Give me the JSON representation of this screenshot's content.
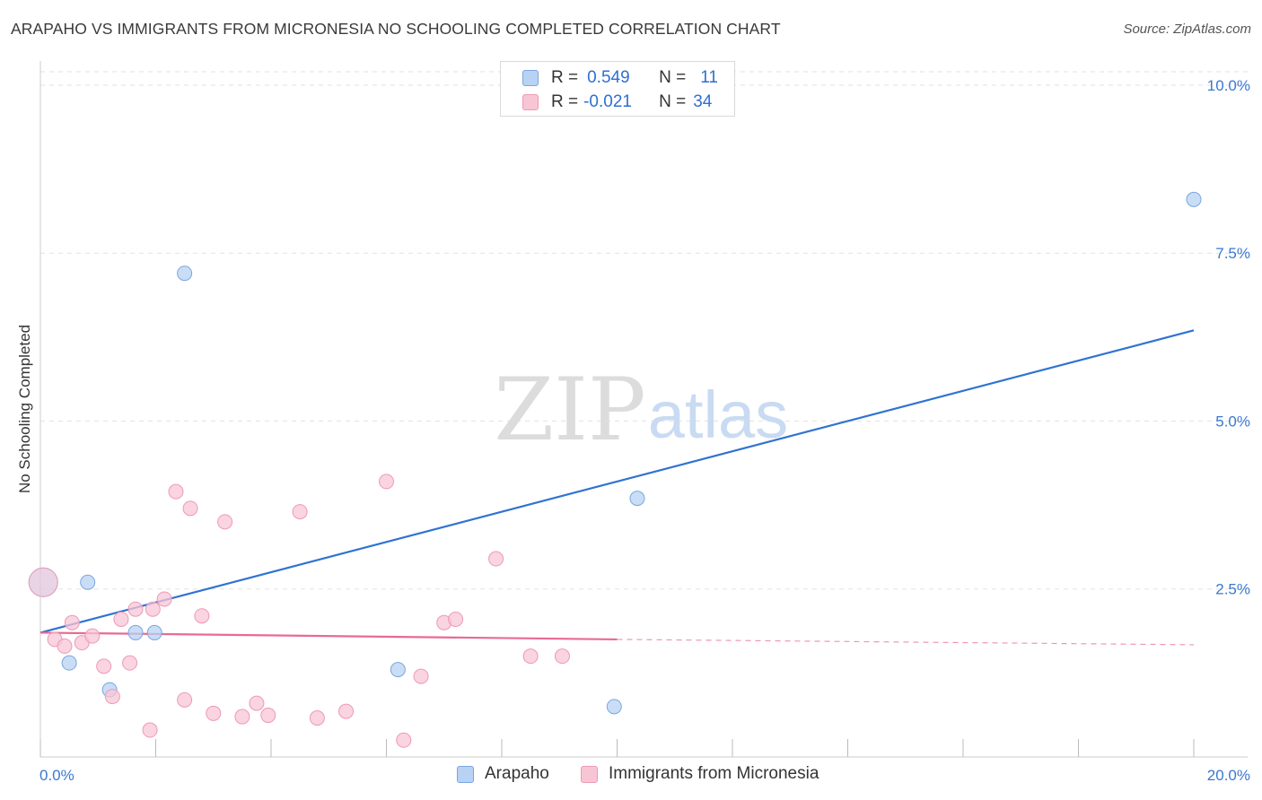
{
  "title": "ARAPAHO VS IMMIGRANTS FROM MICRONESIA NO SCHOOLING COMPLETED CORRELATION CHART",
  "source": "Source: ZipAtlas.com",
  "watermark": {
    "zip": "ZIP",
    "atlas": "atlas"
  },
  "legend_top": {
    "rows": [
      {
        "r_label": "R =",
        "r_value": "0.549",
        "n_label": "N =",
        "n_value": "11"
      },
      {
        "r_label": "R =",
        "r_value": "-0.021",
        "n_label": "N =",
        "n_value": "34"
      }
    ]
  },
  "legend_bottom": {
    "series1": "Arapaho",
    "series2": "Immigrants from Micronesia"
  },
  "colors": {
    "blue_fill": "#b8d2f3",
    "blue_stroke": "#7aa6e0",
    "blue_line": "#2f73d2",
    "pink_fill": "#f8c5d5",
    "pink_stroke": "#ec9ab5",
    "pink_line": "#e86a95",
    "tick_color": "#3a78d0",
    "grid": "#e2e2e2"
  },
  "chart_data": {
    "type": "scatter",
    "title": "ARAPAHO VS IMMIGRANTS FROM MICRONESIA NO SCHOOLING COMPLETED CORRELATION CHART",
    "xlabel": "",
    "ylabel": "No Schooling Completed",
    "xlim": [
      0,
      20
    ],
    "ylim": [
      0,
      10.2
    ],
    "x_tick_labels": [
      "0.0%",
      "20.0%"
    ],
    "y_ticks": [
      2.5,
      5.0,
      7.5,
      10.0
    ],
    "y_tick_labels": [
      "2.5%",
      "5.0%",
      "7.5%",
      "10.0%"
    ],
    "grid": true,
    "series": [
      {
        "name": "Arapaho",
        "color": "blue",
        "r": 0.549,
        "n": 11,
        "points": [
          {
            "x": 0.05,
            "y": 2.6,
            "big": true
          },
          {
            "x": 0.5,
            "y": 1.4
          },
          {
            "x": 0.82,
            "y": 2.6
          },
          {
            "x": 1.2,
            "y": 1.0
          },
          {
            "x": 1.65,
            "y": 1.85
          },
          {
            "x": 1.98,
            "y": 1.85
          },
          {
            "x": 2.5,
            "y": 7.2
          },
          {
            "x": 6.2,
            "y": 1.3
          },
          {
            "x": 9.95,
            "y": 0.75
          },
          {
            "x": 10.35,
            "y": 3.85
          },
          {
            "x": 20.0,
            "y": 8.3
          }
        ],
        "trend": {
          "x0": 0.0,
          "y0": 1.85,
          "x1": 20.0,
          "y1": 6.35
        }
      },
      {
        "name": "Immigrants from Micronesia",
        "color": "pink",
        "r": -0.021,
        "n": 34,
        "points": [
          {
            "x": 0.05,
            "y": 2.6,
            "big": true
          },
          {
            "x": 0.25,
            "y": 1.75
          },
          {
            "x": 0.42,
            "y": 1.65
          },
          {
            "x": 0.55,
            "y": 2.0
          },
          {
            "x": 0.72,
            "y": 1.7
          },
          {
            "x": 0.9,
            "y": 1.8
          },
          {
            "x": 1.1,
            "y": 1.35
          },
          {
            "x": 1.25,
            "y": 0.9
          },
          {
            "x": 1.4,
            "y": 2.05
          },
          {
            "x": 1.55,
            "y": 1.4
          },
          {
            "x": 1.65,
            "y": 2.2
          },
          {
            "x": 1.9,
            "y": 0.4
          },
          {
            "x": 1.95,
            "y": 2.2
          },
          {
            "x": 2.15,
            "y": 2.35
          },
          {
            "x": 2.35,
            "y": 3.95
          },
          {
            "x": 2.5,
            "y": 0.85
          },
          {
            "x": 2.6,
            "y": 3.7
          },
          {
            "x": 2.8,
            "y": 2.1
          },
          {
            "x": 3.0,
            "y": 0.65
          },
          {
            "x": 3.2,
            "y": 3.5
          },
          {
            "x": 3.5,
            "y": 0.6
          },
          {
            "x": 3.75,
            "y": 0.8
          },
          {
            "x": 3.95,
            "y": 0.62
          },
          {
            "x": 4.5,
            "y": 3.65
          },
          {
            "x": 4.8,
            "y": 0.58
          },
          {
            "x": 5.3,
            "y": 0.68
          },
          {
            "x": 6.0,
            "y": 4.1
          },
          {
            "x": 6.3,
            "y": 0.25
          },
          {
            "x": 6.6,
            "y": 1.2
          },
          {
            "x": 7.0,
            "y": 2.0
          },
          {
            "x": 7.2,
            "y": 2.05
          },
          {
            "x": 7.9,
            "y": 2.95
          },
          {
            "x": 8.5,
            "y": 1.5
          },
          {
            "x": 9.05,
            "y": 1.5
          }
        ],
        "trend": {
          "x0": 0.0,
          "y0": 1.85,
          "x1": 10.0,
          "y1": 1.75
        },
        "trend_dashed": {
          "x0": 10.0,
          "y0": 1.75,
          "x1": 20.0,
          "y1": 1.67
        }
      }
    ]
  },
  "y_axis_label": "No Schooling Completed"
}
